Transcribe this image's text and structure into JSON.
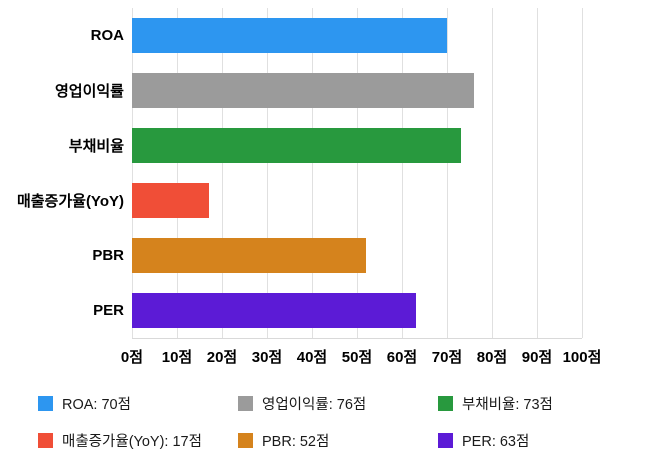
{
  "chart_data": {
    "type": "bar",
    "orientation": "horizontal",
    "title": "",
    "xlabel": "",
    "ylabel": "",
    "unit": "점",
    "categories": [
      "ROA",
      "영업이익률",
      "부채비율",
      "매출증가율(YoY)",
      "PBR",
      "PER"
    ],
    "values": [
      70,
      76,
      73,
      17,
      52,
      63
    ],
    "colors": [
      "#2d96f0",
      "#9b9b9b",
      "#28993e",
      "#f04e37",
      "#d5831d",
      "#5c1bd6"
    ],
    "xlim": [
      0,
      100
    ],
    "x_ticks": [
      "0점",
      "10점",
      "20점",
      "30점",
      "40점",
      "50점",
      "60점",
      "70점",
      "80점",
      "90점",
      "100점"
    ],
    "grid": true,
    "legend_position": "bottom",
    "legend": [
      {
        "label": "ROA: 70점",
        "color": "#2d96f0"
      },
      {
        "label": "영업이익률: 76점",
        "color": "#9b9b9b"
      },
      {
        "label": "부채비율: 73점",
        "color": "#28993e"
      },
      {
        "label": "매출증가율(YoY): 17점",
        "color": "#f04e37"
      },
      {
        "label": "PBR: 52점",
        "color": "#d5831d"
      },
      {
        "label": "PER: 63점",
        "color": "#5c1bd6"
      }
    ]
  }
}
